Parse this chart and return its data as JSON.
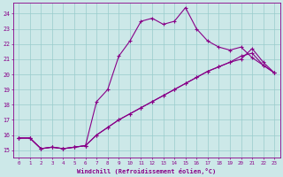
{
  "xlabel": "Windchill (Refroidissement éolien,°C)",
  "bg_color": "#cce8e8",
  "grid_color": "#99cccc",
  "line_color": "#880088",
  "xlim": [
    -0.5,
    23.5
  ],
  "ylim": [
    14.5,
    24.7
  ],
  "yticks": [
    15,
    16,
    17,
    18,
    19,
    20,
    21,
    22,
    23,
    24
  ],
  "xticks": [
    0,
    1,
    2,
    3,
    4,
    5,
    6,
    7,
    8,
    9,
    10,
    11,
    12,
    13,
    14,
    15,
    16,
    17,
    18,
    19,
    20,
    21,
    22,
    23
  ],
  "curve1_x": [
    0,
    1,
    2,
    3,
    4,
    5,
    6,
    7,
    8,
    9,
    10,
    11,
    12,
    13,
    14,
    15,
    16,
    17,
    18,
    19,
    20,
    21,
    22,
    23
  ],
  "curve1_y": [
    15.8,
    15.8,
    15.1,
    15.2,
    15.1,
    15.2,
    15.3,
    18.2,
    19.0,
    21.2,
    22.2,
    23.5,
    23.7,
    23.3,
    23.5,
    24.4,
    23.0,
    22.2,
    21.8,
    21.6,
    21.8,
    21.1,
    20.6,
    20.1
  ],
  "curve2_x": [
    0,
    1,
    2,
    3,
    4,
    5,
    6,
    7,
    8,
    9,
    10,
    11,
    12,
    13,
    14,
    15,
    16,
    17,
    18,
    19,
    20,
    21,
    22,
    23
  ],
  "curve2_y": [
    15.8,
    15.8,
    15.1,
    15.2,
    15.1,
    15.2,
    15.3,
    16.0,
    16.5,
    17.0,
    17.4,
    17.8,
    18.2,
    18.6,
    19.0,
    19.4,
    19.8,
    20.2,
    20.5,
    20.8,
    21.0,
    21.7,
    20.8,
    20.1
  ],
  "curve3_x": [
    0,
    1,
    2,
    3,
    4,
    5,
    6,
    7,
    8,
    9,
    10,
    11,
    12,
    13,
    14,
    15,
    16,
    17,
    18,
    19,
    20,
    21,
    22,
    23
  ],
  "curve3_y": [
    15.8,
    15.8,
    15.1,
    15.2,
    15.1,
    15.2,
    15.3,
    16.0,
    16.5,
    17.0,
    17.4,
    17.8,
    18.2,
    18.6,
    19.0,
    19.4,
    19.8,
    20.2,
    20.5,
    20.8,
    21.2,
    21.4,
    20.6,
    20.1
  ]
}
